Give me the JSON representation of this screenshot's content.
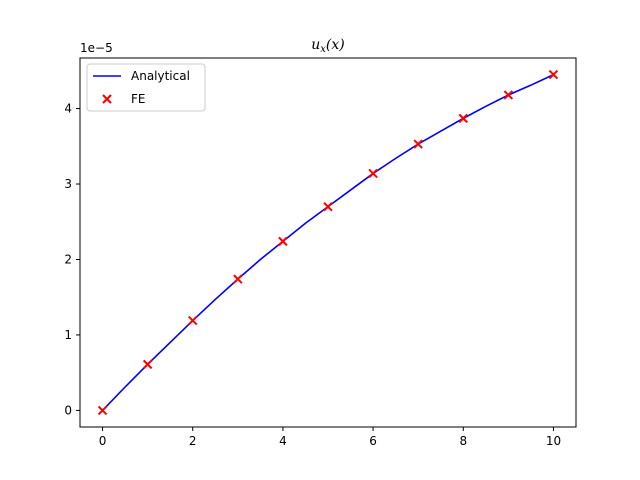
{
  "chart_data": {
    "type": "line",
    "title_main": "u",
    "title_sub": "x",
    "title_arg": "(x)",
    "y_offset_label": "1e−5",
    "xlim": [
      -0.5,
      10.5
    ],
    "ylim": [
      -0.22,
      4.67
    ],
    "xticks": [
      0,
      2,
      4,
      6,
      8,
      10
    ],
    "yticks": [
      0,
      1,
      2,
      3,
      4
    ],
    "grid": false,
    "legend_position": "upper-left",
    "series": [
      {
        "name": "Analytical",
        "kind": "line",
        "color": "#0000ff",
        "x": [
          0,
          0.5,
          1,
          1.5,
          2,
          2.5,
          3,
          3.5,
          4,
          4.5,
          5,
          5.5,
          6,
          6.5,
          7,
          7.5,
          8,
          8.5,
          9,
          9.5,
          10
        ],
        "y": [
          0,
          0.31,
          0.61,
          0.9,
          1.19,
          1.47,
          1.74,
          2.0,
          2.24,
          2.48,
          2.7,
          2.92,
          3.14,
          3.34,
          3.53,
          3.7,
          3.87,
          4.03,
          4.18,
          4.31,
          4.45
        ]
      },
      {
        "name": "FE",
        "kind": "scatter",
        "marker": "x",
        "color": "#ff0000",
        "x": [
          0,
          1,
          2,
          3,
          4,
          5,
          6,
          7,
          8,
          9,
          10
        ],
        "y": [
          0,
          0.61,
          1.19,
          1.74,
          2.24,
          2.7,
          3.14,
          3.53,
          3.87,
          4.18,
          4.45
        ]
      }
    ]
  }
}
